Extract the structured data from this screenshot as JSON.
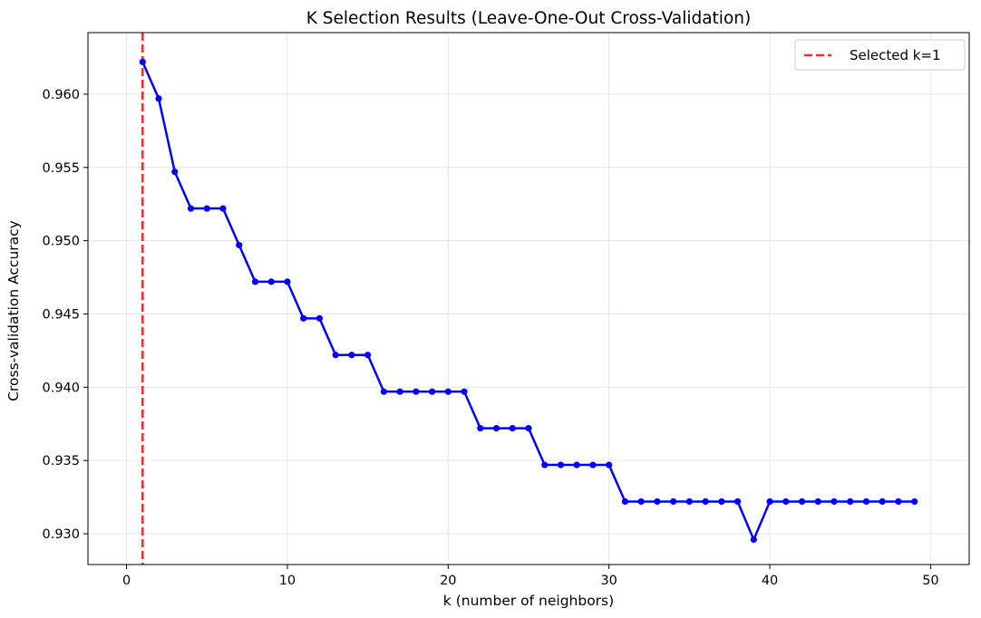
{
  "chart_data": {
    "type": "line",
    "title": "K Selection Results (Leave-One-Out Cross-Validation)",
    "xlabel": "k (number of neighbors)",
    "ylabel": "Cross-validation Accuracy",
    "xlim": [
      -2.4,
      52.4
    ],
    "ylim": [
      0.9279,
      0.9642
    ],
    "xticks": [
      0,
      10,
      20,
      30,
      40,
      50
    ],
    "xtick_labels": [
      "0",
      "10",
      "20",
      "30",
      "40",
      "50"
    ],
    "yticks": [
      0.93,
      0.935,
      0.94,
      0.945,
      0.95,
      0.955,
      0.96
    ],
    "ytick_labels": [
      "0.930",
      "0.935",
      "0.940",
      "0.945",
      "0.950",
      "0.955",
      "0.960"
    ],
    "grid": true,
    "legend_position": "top-right",
    "colors": {
      "series": "#0000ff",
      "selected_line": "#ee2b2b",
      "grid": "#e6e6e6"
    },
    "series": [
      {
        "x": [
          1,
          2,
          3,
          4,
          5,
          6,
          7,
          8,
          9,
          10,
          11,
          12,
          13,
          14,
          15,
          16,
          17,
          18,
          19,
          20,
          21,
          22,
          23,
          24,
          25,
          26,
          27,
          28,
          29,
          30,
          31,
          32,
          33,
          34,
          35,
          36,
          37,
          38,
          39,
          40,
          41,
          42,
          43,
          44,
          45,
          46,
          47,
          48,
          49
        ],
        "values": [
          0.9622,
          0.9597,
          0.9547,
          0.9522,
          0.9522,
          0.9522,
          0.9497,
          0.9472,
          0.9472,
          0.9472,
          0.9447,
          0.9447,
          0.9422,
          0.9422,
          0.9422,
          0.9397,
          0.9397,
          0.9397,
          0.9397,
          0.9397,
          0.9397,
          0.9372,
          0.9372,
          0.9372,
          0.9372,
          0.9347,
          0.9347,
          0.9347,
          0.9347,
          0.9347,
          0.9322,
          0.9322,
          0.9322,
          0.9322,
          0.9322,
          0.9322,
          0.9322,
          0.9322,
          0.9296,
          0.9322,
          0.9322,
          0.9322,
          0.9322,
          0.9322,
          0.9322,
          0.9322,
          0.9322,
          0.9322,
          0.9322
        ]
      }
    ],
    "vline": {
      "x": 1,
      "label": "Selected k=1"
    }
  }
}
